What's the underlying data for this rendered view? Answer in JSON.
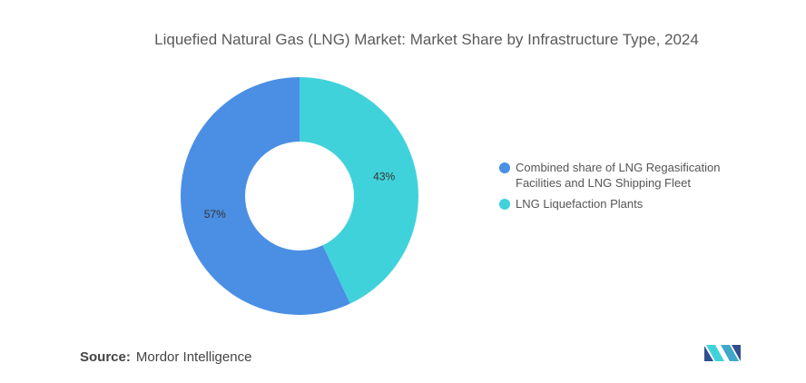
{
  "chart_data": {
    "type": "donut",
    "title": "Liquefied Natural Gas (LNG) Market: Market Share by Infrastructure Type, 2024",
    "categories": [
      "Combined share of LNG Regasification Facilities and LNG Shipping Fleet",
      "LNG Liquefaction Plants"
    ],
    "values": [
      57,
      43
    ],
    "value_labels": [
      "57%",
      "43%"
    ],
    "colors": [
      "#4a8fe3",
      "#40d2db"
    ],
    "legend": "right"
  },
  "source": {
    "label": "Source:",
    "name": "Mordor Intelligence"
  }
}
